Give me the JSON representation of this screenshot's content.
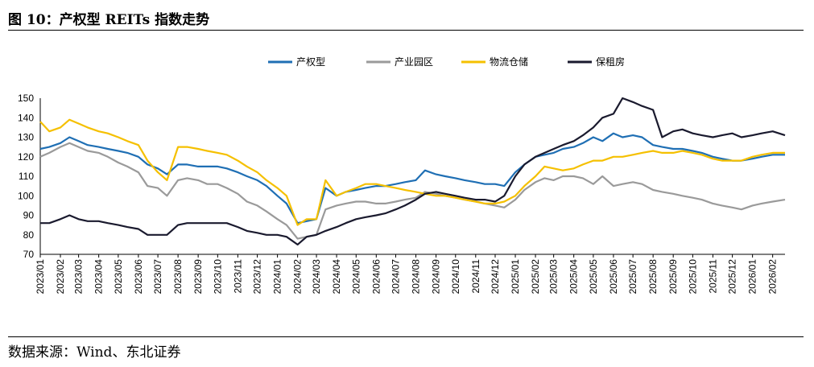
{
  "figure": {
    "title": "图 10：产权型 REITs 指数走势",
    "source": "数据来源：Wind、东北证券"
  },
  "chart_data": {
    "type": "line",
    "ylim": [
      70,
      150
    ],
    "yticks": [
      70,
      80,
      90,
      100,
      110,
      120,
      130,
      140,
      150
    ],
    "xlim": [
      "2023-01-01",
      "2026-02-20"
    ],
    "x_tick_labels": [
      "2023/01",
      "2023/02",
      "2023/03",
      "2023/04",
      "2023/05",
      "2023/06",
      "2023/07",
      "2023/08",
      "2023/09",
      "2023/10",
      "2023/11",
      "2023/12",
      "2024/01",
      "2024/02",
      "2024/03",
      "2024/04",
      "2024/05",
      "2024/06",
      "2024/07",
      "2024/08",
      "2024/09",
      "2024/10",
      "2024/11",
      "2024/12",
      "2025/01",
      "2025/02",
      "2025/03",
      "2025/04",
      "2025/05",
      "2025/06",
      "2025/07",
      "2025/08",
      "2025/09",
      "2025/10",
      "2025/11",
      "2025/12",
      "2026/01",
      "2026/02"
    ],
    "x_tick_dates": [
      "2023-01-01",
      "2023-02-01",
      "2023-03-01",
      "2023-04-01",
      "2023-05-01",
      "2023-06-01",
      "2023-07-01",
      "2023-08-01",
      "2023-09-01",
      "2023-10-01",
      "2023-11-01",
      "2023-12-01",
      "2024-01-01",
      "2024-02-01",
      "2024-03-01",
      "2024-04-01",
      "2024-05-01",
      "2024-06-01",
      "2024-07-01",
      "2024-08-01",
      "2024-09-01",
      "2024-10-01",
      "2024-11-01",
      "2024-12-01",
      "2025-01-01",
      "2025-02-01",
      "2025-03-01",
      "2025-04-01",
      "2025-05-01",
      "2025-06-01",
      "2025-07-01",
      "2025-08-01",
      "2025-09-01",
      "2025-10-01",
      "2025-11-01",
      "2025-12-01",
      "2026-01-01",
      "2026-02-01"
    ],
    "grid": false,
    "legend_position": "top-center",
    "series": [
      {
        "name": "产权型",
        "color": "#1f6fb4",
        "x": [
          "2023-01-01",
          "2023-01-15",
          "2023-02-01",
          "2023-02-15",
          "2023-03-01",
          "2023-03-15",
          "2023-04-01",
          "2023-04-15",
          "2023-05-01",
          "2023-05-15",
          "2023-06-01",
          "2023-06-15",
          "2023-07-01",
          "2023-07-15",
          "2023-08-01",
          "2023-08-15",
          "2023-09-01",
          "2023-09-15",
          "2023-10-01",
          "2023-10-15",
          "2023-11-01",
          "2023-11-15",
          "2023-12-01",
          "2023-12-15",
          "2024-01-01",
          "2024-01-15",
          "2024-02-01",
          "2024-02-15",
          "2024-03-01",
          "2024-03-15",
          "2024-04-01",
          "2024-04-15",
          "2024-05-01",
          "2024-05-15",
          "2024-06-01",
          "2024-06-15",
          "2024-07-01",
          "2024-07-15",
          "2024-08-01",
          "2024-08-15",
          "2024-09-01",
          "2024-09-15",
          "2024-10-01",
          "2024-10-15",
          "2024-11-01",
          "2024-11-15",
          "2024-12-01",
          "2024-12-15",
          "2025-01-01",
          "2025-01-15",
          "2025-02-01",
          "2025-02-15",
          "2025-03-01",
          "2025-03-15",
          "2025-04-01",
          "2025-04-15",
          "2025-05-01",
          "2025-05-15",
          "2025-06-01",
          "2025-06-15",
          "2025-07-01",
          "2025-07-15",
          "2025-08-01",
          "2025-08-15",
          "2025-09-01",
          "2025-09-15",
          "2025-10-01",
          "2025-10-15",
          "2025-11-01",
          "2025-11-15",
          "2025-12-01",
          "2025-12-15",
          "2026-01-01",
          "2026-01-15",
          "2026-02-01",
          "2026-02-20"
        ],
        "values": [
          124,
          125,
          127,
          130,
          128,
          126,
          125,
          124,
          123,
          122,
          120,
          116,
          114,
          111,
          116,
          116,
          115,
          115,
          115,
          114,
          112,
          110,
          108,
          105,
          100,
          96,
          86,
          87,
          88,
          104,
          100,
          102,
          103,
          104,
          105,
          105,
          106,
          107,
          108,
          113,
          111,
          110,
          109,
          108,
          107,
          106,
          106,
          105,
          112,
          116,
          120,
          121,
          122,
          124,
          125,
          127,
          130,
          128,
          132,
          130,
          131,
          130,
          126,
          125,
          124,
          124,
          123,
          122,
          120,
          119,
          118,
          118,
          119,
          120,
          121,
          121
        ]
      },
      {
        "name": "产业园区",
        "color": "#9a9a9a",
        "x": [
          "2023-01-01",
          "2023-01-15",
          "2023-02-01",
          "2023-02-15",
          "2023-03-01",
          "2023-03-15",
          "2023-04-01",
          "2023-04-15",
          "2023-05-01",
          "2023-05-15",
          "2023-06-01",
          "2023-06-15",
          "2023-07-01",
          "2023-07-15",
          "2023-08-01",
          "2023-08-15",
          "2023-09-01",
          "2023-09-15",
          "2023-10-01",
          "2023-10-15",
          "2023-11-01",
          "2023-11-15",
          "2023-12-01",
          "2023-12-15",
          "2024-01-01",
          "2024-01-15",
          "2024-02-01",
          "2024-02-15",
          "2024-03-01",
          "2024-03-15",
          "2024-04-01",
          "2024-04-15",
          "2024-05-01",
          "2024-05-15",
          "2024-06-01",
          "2024-06-15",
          "2024-07-01",
          "2024-07-15",
          "2024-08-01",
          "2024-08-15",
          "2024-09-01",
          "2024-09-15",
          "2024-10-01",
          "2024-10-15",
          "2024-11-01",
          "2024-11-15",
          "2024-12-01",
          "2024-12-15",
          "2025-01-01",
          "2025-01-15",
          "2025-02-01",
          "2025-02-15",
          "2025-03-01",
          "2025-03-15",
          "2025-04-01",
          "2025-04-15",
          "2025-05-01",
          "2025-05-15",
          "2025-06-01",
          "2025-06-15",
          "2025-07-01",
          "2025-07-15",
          "2025-08-01",
          "2025-08-15",
          "2025-09-01",
          "2025-09-15",
          "2025-10-01",
          "2025-10-15",
          "2025-11-01",
          "2025-11-15",
          "2025-12-01",
          "2025-12-15",
          "2026-01-01",
          "2026-01-15",
          "2026-02-01",
          "2026-02-20"
        ],
        "values": [
          120,
          122,
          125,
          127,
          125,
          123,
          122,
          120,
          117,
          115,
          112,
          105,
          104,
          100,
          108,
          109,
          108,
          106,
          106,
          104,
          101,
          97,
          95,
          92,
          88,
          85,
          78,
          79,
          80,
          93,
          95,
          96,
          97,
          97,
          96,
          96,
          97,
          98,
          99,
          102,
          101,
          100,
          99,
          98,
          97,
          96,
          95,
          94,
          98,
          103,
          107,
          109,
          108,
          110,
          110,
          109,
          106,
          110,
          105,
          106,
          107,
          106,
          103,
          102,
          101,
          100,
          99,
          98,
          96,
          95,
          94,
          93,
          95,
          96,
          97,
          98
        ]
      },
      {
        "name": "物流仓储",
        "color": "#f5c000",
        "x": [
          "2023-01-01",
          "2023-01-15",
          "2023-02-01",
          "2023-02-15",
          "2023-03-01",
          "2023-03-15",
          "2023-04-01",
          "2023-04-15",
          "2023-05-01",
          "2023-05-15",
          "2023-06-01",
          "2023-06-15",
          "2023-07-01",
          "2023-07-15",
          "2023-08-01",
          "2023-08-15",
          "2023-09-01",
          "2023-09-15",
          "2023-10-01",
          "2023-10-15",
          "2023-11-01",
          "2023-11-15",
          "2023-12-01",
          "2023-12-15",
          "2024-01-01",
          "2024-01-15",
          "2024-02-01",
          "2024-02-15",
          "2024-03-01",
          "2024-03-15",
          "2024-04-01",
          "2024-04-15",
          "2024-05-01",
          "2024-05-15",
          "2024-06-01",
          "2024-06-15",
          "2024-07-01",
          "2024-07-15",
          "2024-08-01",
          "2024-08-15",
          "2024-09-01",
          "2024-09-15",
          "2024-10-01",
          "2024-10-15",
          "2024-11-01",
          "2024-11-15",
          "2024-12-01",
          "2024-12-15",
          "2025-01-01",
          "2025-01-15",
          "2025-02-01",
          "2025-02-15",
          "2025-03-01",
          "2025-03-15",
          "2025-04-01",
          "2025-04-15",
          "2025-05-01",
          "2025-05-15",
          "2025-06-01",
          "2025-06-15",
          "2025-07-01",
          "2025-07-15",
          "2025-08-01",
          "2025-08-15",
          "2025-09-01",
          "2025-09-15",
          "2025-10-01",
          "2025-10-15",
          "2025-11-01",
          "2025-11-15",
          "2025-12-01",
          "2025-12-15",
          "2026-01-01",
          "2026-01-15",
          "2026-02-01",
          "2026-02-20"
        ],
        "values": [
          138,
          133,
          135,
          139,
          137,
          135,
          133,
          132,
          130,
          128,
          126,
          118,
          112,
          108,
          125,
          125,
          124,
          123,
          122,
          121,
          118,
          115,
          112,
          108,
          104,
          100,
          85,
          88,
          88,
          108,
          100,
          102,
          104,
          106,
          106,
          105,
          104,
          103,
          102,
          101,
          100,
          100,
          99,
          98,
          97,
          96,
          96,
          97,
          100,
          105,
          110,
          115,
          114,
          113,
          114,
          116,
          118,
          118,
          120,
          120,
          121,
          122,
          123,
          122,
          122,
          123,
          122,
          121,
          119,
          118,
          118,
          118,
          120,
          121,
          122,
          122
        ]
      },
      {
        "name": "保租房",
        "color": "#1a1a2e",
        "x": [
          "2023-01-01",
          "2023-01-15",
          "2023-02-01",
          "2023-02-15",
          "2023-03-01",
          "2023-03-15",
          "2023-04-01",
          "2023-04-15",
          "2023-05-01",
          "2023-05-15",
          "2023-06-01",
          "2023-06-15",
          "2023-07-01",
          "2023-07-15",
          "2023-08-01",
          "2023-08-15",
          "2023-09-01",
          "2023-09-15",
          "2023-10-01",
          "2023-10-15",
          "2023-11-01",
          "2023-11-15",
          "2023-12-01",
          "2023-12-15",
          "2024-01-01",
          "2024-01-15",
          "2024-02-01",
          "2024-02-15",
          "2024-03-01",
          "2024-03-15",
          "2024-04-01",
          "2024-04-15",
          "2024-05-01",
          "2024-05-15",
          "2024-06-01",
          "2024-06-15",
          "2024-07-01",
          "2024-07-15",
          "2024-08-01",
          "2024-08-15",
          "2024-09-01",
          "2024-09-15",
          "2024-10-01",
          "2024-10-15",
          "2024-11-01",
          "2024-11-15",
          "2024-12-01",
          "2024-12-15",
          "2025-01-01",
          "2025-01-15",
          "2025-02-01",
          "2025-02-15",
          "2025-03-01",
          "2025-03-15",
          "2025-04-01",
          "2025-04-15",
          "2025-05-01",
          "2025-05-15",
          "2025-06-01",
          "2025-06-15",
          "2025-07-01",
          "2025-07-15",
          "2025-08-01",
          "2025-08-15",
          "2025-09-01",
          "2025-09-15",
          "2025-10-01",
          "2025-10-15",
          "2025-11-01",
          "2025-11-15",
          "2025-12-01",
          "2025-12-15",
          "2026-01-01",
          "2026-01-15",
          "2026-02-01",
          "2026-02-20"
        ],
        "values": [
          86,
          86,
          88,
          90,
          88,
          87,
          87,
          86,
          85,
          84,
          83,
          80,
          80,
          80,
          85,
          86,
          86,
          86,
          86,
          86,
          84,
          82,
          81,
          80,
          80,
          79,
          75,
          79,
          80,
          82,
          84,
          86,
          88,
          89,
          90,
          91,
          93,
          95,
          98,
          101,
          102,
          101,
          100,
          99,
          98,
          98,
          97,
          100,
          110,
          116,
          120,
          122,
          124,
          126,
          128,
          131,
          135,
          140,
          142,
          150,
          148,
          146,
          144,
          130,
          133,
          134,
          132,
          131,
          130,
          131,
          132,
          130,
          131,
          132,
          133,
          131
        ]
      }
    ]
  }
}
